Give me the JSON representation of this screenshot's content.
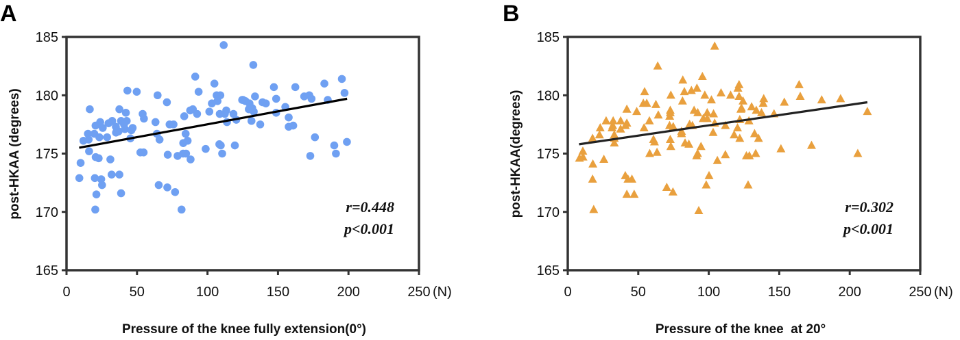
{
  "chart_data": [
    {
      "type": "scatter",
      "panel_label": "A",
      "xlabel": "Pressure of the knee fully extension(0°)",
      "ylabel": "post-HKAA (degrees)",
      "x_unit": "(N)",
      "xlim": [
        0,
        250
      ],
      "ylim": [
        165,
        185
      ],
      "xticks": [
        "0",
        "50",
        "100",
        "150",
        "200",
        "250"
      ],
      "yticks": [
        "165",
        "170",
        "175",
        "180",
        "185"
      ],
      "grid": false,
      "marker": "circle",
      "color": "#6fa0f2",
      "annotations": [
        "r=0.448",
        "p<0.001"
      ],
      "regression_line": {
        "x": [
          9,
          199
        ],
        "y": [
          175.5,
          179.7
        ]
      },
      "points": [
        [
          111.5,
          184.3
        ],
        [
          91.3,
          181.6
        ],
        [
          104.9,
          181.0
        ],
        [
          43.2,
          180.4
        ],
        [
          49.8,
          180.3
        ],
        [
          93.7,
          180.3
        ],
        [
          64.6,
          180.0
        ],
        [
          106.5,
          180.0
        ],
        [
          109.1,
          180.0
        ],
        [
          71.2,
          179.4
        ],
        [
          16.5,
          178.8
        ],
        [
          107.1,
          179.5
        ],
        [
          103.1,
          179.3
        ],
        [
          37.5,
          178.8
        ],
        [
          42.1,
          178.5
        ],
        [
          54.0,
          178.4
        ],
        [
          54.9,
          178.0
        ],
        [
          87.7,
          178.7
        ],
        [
          89.6,
          178.8
        ],
        [
          92.6,
          178.4
        ],
        [
          83.5,
          178.2
        ],
        [
          101.3,
          178.6
        ],
        [
          108.7,
          178.4
        ],
        [
          113.3,
          178.7
        ],
        [
          112.3,
          178.4
        ],
        [
          118.4,
          178.4
        ],
        [
          120.4,
          177.9
        ],
        [
          113.8,
          177.7
        ],
        [
          124.6,
          179.6
        ],
        [
          23.9,
          177.7
        ],
        [
          20.6,
          177.4
        ],
        [
          25.7,
          177.2
        ],
        [
          29.8,
          177.6
        ],
        [
          32.4,
          177.8
        ],
        [
          35.0,
          177.3
        ],
        [
          35.1,
          176.8
        ],
        [
          38.7,
          177.8
        ],
        [
          42.7,
          177.8
        ],
        [
          40.8,
          177.5
        ],
        [
          41.4,
          177.1
        ],
        [
          46.9,
          177.2
        ],
        [
          46.0,
          177.0
        ],
        [
          36.9,
          176.9
        ],
        [
          28.8,
          176.4
        ],
        [
          23.3,
          176.4
        ],
        [
          19.7,
          176.7
        ],
        [
          15.2,
          176.7
        ],
        [
          15.7,
          176.2
        ],
        [
          12.0,
          176.1
        ],
        [
          45.3,
          176.3
        ],
        [
          63.1,
          177.7
        ],
        [
          73.1,
          177.5
        ],
        [
          75.9,
          177.5
        ],
        [
          64.1,
          176.7
        ],
        [
          66.0,
          176.2
        ],
        [
          84.5,
          176.7
        ],
        [
          82.8,
          175.9
        ],
        [
          85.9,
          176.1
        ],
        [
          16.0,
          175.2
        ],
        [
          20.7,
          174.7
        ],
        [
          22.8,
          174.6
        ],
        [
          31.1,
          174.5
        ],
        [
          52.4,
          175.1
        ],
        [
          54.7,
          175.1
        ],
        [
          71.8,
          174.9
        ],
        [
          78.8,
          174.8
        ],
        [
          82.7,
          175.0
        ],
        [
          84.8,
          175.0
        ],
        [
          88.0,
          174.5
        ],
        [
          98.7,
          175.4
        ],
        [
          108.4,
          175.8
        ],
        [
          109.4,
          175.7
        ],
        [
          110.4,
          175.0
        ],
        [
          119.4,
          175.7
        ],
        [
          10.0,
          174.2
        ],
        [
          9.1,
          172.9
        ],
        [
          20.1,
          172.9
        ],
        [
          24.6,
          172.8
        ],
        [
          25.2,
          172.3
        ],
        [
          32.0,
          173.2
        ],
        [
          37.5,
          173.2
        ],
        [
          21.2,
          171.5
        ],
        [
          38.7,
          171.6
        ],
        [
          65.4,
          172.3
        ],
        [
          71.5,
          172.1
        ],
        [
          77.0,
          171.7
        ],
        [
          20.4,
          170.2
        ],
        [
          81.6,
          170.2
        ],
        [
          132.5,
          182.6
        ],
        [
          195.3,
          181.4
        ],
        [
          182.9,
          181.0
        ],
        [
          147.1,
          180.7
        ],
        [
          162.3,
          180.7
        ],
        [
          133.7,
          179.9
        ],
        [
          148.7,
          179.7
        ],
        [
          168.6,
          179.9
        ],
        [
          172.2,
          180.0
        ],
        [
          173.8,
          179.7
        ],
        [
          197.2,
          180.2
        ],
        [
          185.3,
          179.6
        ],
        [
          125.2,
          179.6
        ],
        [
          126.9,
          179.5
        ],
        [
          129.8,
          179.3
        ],
        [
          129.3,
          178.8
        ],
        [
          131.7,
          178.9
        ],
        [
          132.8,
          178.6
        ],
        [
          139.0,
          179.4
        ],
        [
          141.4,
          179.3
        ],
        [
          148.7,
          178.5
        ],
        [
          155.2,
          179.0
        ],
        [
          157.6,
          178.1
        ],
        [
          157.6,
          177.3
        ],
        [
          160.8,
          177.4
        ],
        [
          131.2,
          177.8
        ],
        [
          137.4,
          177.5
        ],
        [
          176.2,
          176.4
        ],
        [
          189.9,
          175.7
        ],
        [
          198.9,
          176.0
        ],
        [
          172.9,
          174.8
        ],
        [
          191.1,
          175.0
        ]
      ]
    },
    {
      "type": "scatter",
      "panel_label": "B",
      "xlabel": "Pressure of the knee  at 20°",
      "ylabel": "post-HKAA(degrees)",
      "x_unit": "(N)",
      "xlim": [
        0,
        250
      ],
      "ylim": [
        165,
        185
      ],
      "xticks": [
        "0",
        "50",
        "100",
        "150",
        "200",
        "250"
      ],
      "yticks": [
        "165",
        "170",
        "175",
        "180",
        "185"
      ],
      "grid": false,
      "marker": "triangle",
      "color": "#e9a03e",
      "annotations": [
        "r=0.302",
        "p<0.001"
      ],
      "regression_line": {
        "x": [
          8,
          212.5
        ],
        "y": [
          175.8,
          179.4
        ]
      },
      "points": [
        [
          104.2,
          184.2
        ],
        [
          63.8,
          182.5
        ],
        [
          81.6,
          181.3
        ],
        [
          95.5,
          181.6
        ],
        [
          54.5,
          180.3
        ],
        [
          82.7,
          180.3
        ],
        [
          87.7,
          180.4
        ],
        [
          91.6,
          180.6
        ],
        [
          73.1,
          180.0
        ],
        [
          97.2,
          180.0
        ],
        [
          101.9,
          179.6
        ],
        [
          108.7,
          180.2
        ],
        [
          115.5,
          180.0
        ],
        [
          121.5,
          180.9
        ],
        [
          120.7,
          180.6
        ],
        [
          121.5,
          179.9
        ],
        [
          81.4,
          179.5
        ],
        [
          53.6,
          179.3
        ],
        [
          56.0,
          179.3
        ],
        [
          62.5,
          179.2
        ],
        [
          41.9,
          178.8
        ],
        [
          48.9,
          178.6
        ],
        [
          64.2,
          178.3
        ],
        [
          72.7,
          178.7
        ],
        [
          72.7,
          178.5
        ],
        [
          72.3,
          178.2
        ],
        [
          89.6,
          178.7
        ],
        [
          92.2,
          178.5
        ],
        [
          98.9,
          178.5
        ],
        [
          103.4,
          178.4
        ],
        [
          96.1,
          178.0
        ],
        [
          98.9,
          178.0
        ],
        [
          122.8,
          178.8
        ],
        [
          27.2,
          177.8
        ],
        [
          32.2,
          177.8
        ],
        [
          37.5,
          177.8
        ],
        [
          41.9,
          177.6
        ],
        [
          40.8,
          177.4
        ],
        [
          57.9,
          177.8
        ],
        [
          23.0,
          177.2
        ],
        [
          31.9,
          177.4
        ],
        [
          31.4,
          177.2
        ],
        [
          37.5,
          177.1
        ],
        [
          54.1,
          177.2
        ],
        [
          72.2,
          177.4
        ],
        [
          74.8,
          177.3
        ],
        [
          86.4,
          177.5
        ],
        [
          88.4,
          177.4
        ],
        [
          104.2,
          177.6
        ],
        [
          111.8,
          177.4
        ],
        [
          122.0,
          177.9
        ],
        [
          120.4,
          177.2
        ],
        [
          80.7,
          176.9
        ],
        [
          80.7,
          176.7
        ],
        [
          103.1,
          176.8
        ],
        [
          22.5,
          176.6
        ],
        [
          17.6,
          176.3
        ],
        [
          33.0,
          176.6
        ],
        [
          33.0,
          176.3
        ],
        [
          33.0,
          175.9
        ],
        [
          118.0,
          176.6
        ],
        [
          122.0,
          176.3
        ],
        [
          60.8,
          176.2
        ],
        [
          61.5,
          176.0
        ],
        [
          72.7,
          176.2
        ],
        [
          73.1,
          175.6
        ],
        [
          83.2,
          175.9
        ],
        [
          85.9,
          175.8
        ],
        [
          94.5,
          175.6
        ],
        [
          10.7,
          175.2
        ],
        [
          58.1,
          175.0
        ],
        [
          63.3,
          175.1
        ],
        [
          91.4,
          174.8
        ],
        [
          92.1,
          175.0
        ],
        [
          111.8,
          174.9
        ],
        [
          8.3,
          174.6
        ],
        [
          10.8,
          174.7
        ],
        [
          25.6,
          174.5
        ],
        [
          106.1,
          174.4
        ],
        [
          17.8,
          174.1
        ],
        [
          17.6,
          172.8
        ],
        [
          40.8,
          173.1
        ],
        [
          42.7,
          172.8
        ],
        [
          45.5,
          172.8
        ],
        [
          100.2,
          173.1
        ],
        [
          98.2,
          172.3
        ],
        [
          70.2,
          172.1
        ],
        [
          74.6,
          171.7
        ],
        [
          41.9,
          171.5
        ],
        [
          47.1,
          171.5
        ],
        [
          18.4,
          170.2
        ],
        [
          92.9,
          170.1
        ],
        [
          124.3,
          179.5
        ],
        [
          123.2,
          178.9
        ],
        [
          130.4,
          179.0
        ],
        [
          133.7,
          178.7
        ],
        [
          137.4,
          178.5
        ],
        [
          139.0,
          179.7
        ],
        [
          138.6,
          179.3
        ],
        [
          153.6,
          179.4
        ],
        [
          146.3,
          178.4
        ],
        [
          164.1,
          180.9
        ],
        [
          164.9,
          179.9
        ],
        [
          180.1,
          179.6
        ],
        [
          193.5,
          179.7
        ],
        [
          212.5,
          178.6
        ],
        [
          128.5,
          177.8
        ],
        [
          132.5,
          176.7
        ],
        [
          135.3,
          176.3
        ],
        [
          151.2,
          175.4
        ],
        [
          172.9,
          175.7
        ],
        [
          205.7,
          175.0
        ],
        [
          126.7,
          174.8
        ],
        [
          128.8,
          174.8
        ],
        [
          133.3,
          175.0
        ],
        [
          127.9,
          172.3
        ]
      ]
    }
  ]
}
